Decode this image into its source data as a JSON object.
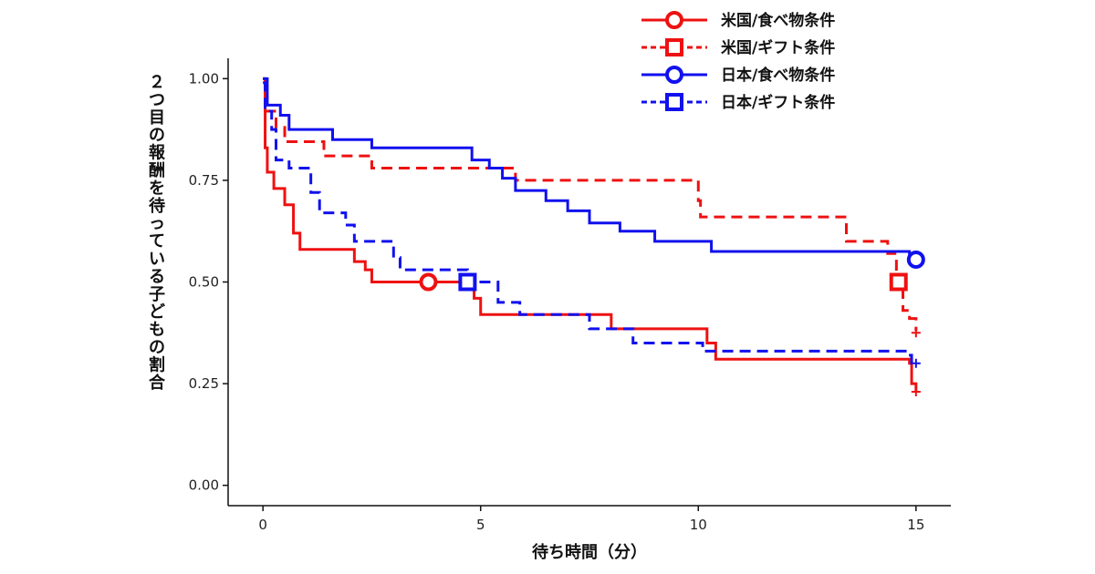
{
  "chart_data": {
    "type": "line",
    "title": "",
    "xlabel": "待ち時間（分）",
    "ylabel": "２つ目の報酬を待っている子どもの割合",
    "xlim": [
      -0.8,
      15.8
    ],
    "ylim": [
      -0.05,
      1.05
    ],
    "x_ticks": [
      {
        "v": 0,
        "label": "0"
      },
      {
        "v": 5,
        "label": "5"
      },
      {
        "v": 10,
        "label": "10"
      },
      {
        "v": 15,
        "label": "15"
      }
    ],
    "y_ticks": [
      {
        "v": 0,
        "label": "0.00"
      },
      {
        "v": 0.25,
        "label": "0.25"
      },
      {
        "v": 0.5,
        "label": "0.50"
      },
      {
        "v": 0.75,
        "label": "0.75"
      },
      {
        "v": 1,
        "label": "1.00"
      }
    ],
    "grid": false,
    "legend_position": "top-right",
    "series": [
      {
        "name": "米国/食べ物条件",
        "color": "#ee1111",
        "dash": "solid",
        "marker": "circle",
        "steps": [
          [
            0,
            1.0
          ],
          [
            0.05,
            0.83
          ],
          [
            0.1,
            0.77
          ],
          [
            0.25,
            0.73
          ],
          [
            0.5,
            0.69
          ],
          [
            0.7,
            0.62
          ],
          [
            0.85,
            0.58
          ],
          [
            2.1,
            0.55
          ],
          [
            2.35,
            0.53
          ],
          [
            2.5,
            0.5
          ],
          [
            4.85,
            0.46
          ],
          [
            5.0,
            0.42
          ],
          [
            8.0,
            0.385
          ],
          [
            10.2,
            0.35
          ],
          [
            10.4,
            0.31
          ],
          [
            14.85,
            0.3
          ],
          [
            14.9,
            0.25
          ],
          [
            15.0,
            0.23
          ]
        ],
        "marker_point": [
          3.8,
          0.5
        ],
        "censor_points": [
          [
            15.0,
            0.23
          ]
        ]
      },
      {
        "name": "米国/ギフト条件",
        "color": "#ee1111",
        "dash": "dashed",
        "marker": "square",
        "steps": [
          [
            0,
            1.0
          ],
          [
            0.05,
            0.92
          ],
          [
            0.3,
            0.88
          ],
          [
            0.5,
            0.845
          ],
          [
            1.4,
            0.81
          ],
          [
            2.5,
            0.78
          ],
          [
            5.1,
            0.78
          ],
          [
            5.8,
            0.75
          ],
          [
            10.0,
            0.7
          ],
          [
            10.05,
            0.66
          ],
          [
            10.4,
            0.66
          ],
          [
            13.4,
            0.6
          ],
          [
            14.35,
            0.57
          ],
          [
            14.55,
            0.5
          ],
          [
            14.7,
            0.43
          ],
          [
            14.85,
            0.41
          ],
          [
            15.0,
            0.38
          ]
        ],
        "marker_point": [
          14.6,
          0.5
        ],
        "censor_points": [
          [
            15.0,
            0.375
          ]
        ]
      },
      {
        "name": "日本/食べ物条件",
        "color": "#1111ee",
        "dash": "solid",
        "marker": "circle",
        "steps": [
          [
            0,
            1.0
          ],
          [
            0.1,
            0.935
          ],
          [
            0.4,
            0.91
          ],
          [
            0.6,
            0.875
          ],
          [
            1.6,
            0.85
          ],
          [
            2.5,
            0.83
          ],
          [
            4.8,
            0.8
          ],
          [
            5.2,
            0.78
          ],
          [
            5.5,
            0.755
          ],
          [
            5.8,
            0.725
          ],
          [
            6.5,
            0.7
          ],
          [
            7.0,
            0.675
          ],
          [
            7.5,
            0.645
          ],
          [
            8.2,
            0.625
          ],
          [
            9.0,
            0.6
          ],
          [
            10.2,
            0.6
          ],
          [
            10.3,
            0.575
          ],
          [
            14.85,
            0.55
          ]
        ],
        "marker_point": [
          15.0,
          0.555
        ],
        "censor_points": []
      },
      {
        "name": "日本/ギフト条件",
        "color": "#1111ee",
        "dash": "dashed",
        "marker": "square",
        "steps": [
          [
            0,
            0.99
          ],
          [
            0.05,
            0.92
          ],
          [
            0.2,
            0.875
          ],
          [
            0.3,
            0.8
          ],
          [
            0.6,
            0.78
          ],
          [
            1.1,
            0.72
          ],
          [
            1.3,
            0.67
          ],
          [
            1.9,
            0.64
          ],
          [
            2.1,
            0.6
          ],
          [
            3.0,
            0.56
          ],
          [
            3.15,
            0.53
          ],
          [
            4.7,
            0.5
          ],
          [
            5.4,
            0.45
          ],
          [
            5.9,
            0.42
          ],
          [
            7.5,
            0.385
          ],
          [
            8.5,
            0.35
          ],
          [
            10.1,
            0.33
          ],
          [
            14.8,
            0.32
          ],
          [
            14.9,
            0.3
          ]
        ],
        "marker_point": [
          4.7,
          0.5
        ],
        "censor_points": [
          [
            15.0,
            0.3
          ]
        ]
      }
    ]
  }
}
